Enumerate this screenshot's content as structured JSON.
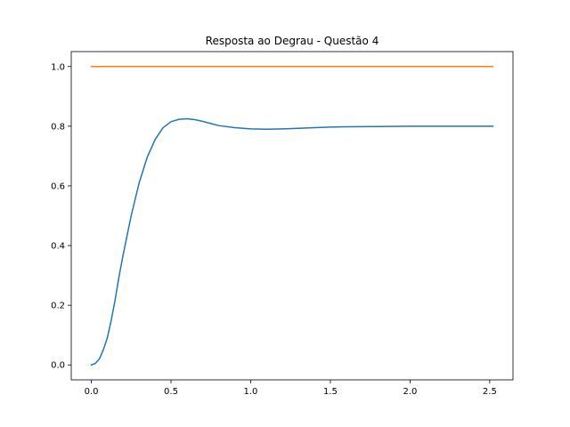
{
  "chart_data": {
    "type": "line",
    "title": "Resposta ao Degrau - Questão 4",
    "xlabel": "",
    "ylabel": "",
    "xlim": [
      -0.126,
      2.646
    ],
    "ylim": [
      -0.05,
      1.05
    ],
    "grid": false,
    "x_ticks": [
      0.0,
      0.5,
      1.0,
      1.5,
      2.0,
      2.5
    ],
    "x_tick_labels": [
      "0.0",
      "0.5",
      "1.0",
      "1.5",
      "2.0",
      "2.5"
    ],
    "y_ticks": [
      0.0,
      0.2,
      0.4,
      0.6,
      0.8,
      1.0
    ],
    "y_tick_labels": [
      "0.0",
      "0.2",
      "0.4",
      "0.6",
      "0.8",
      "1.0"
    ],
    "series": [
      {
        "color": "#1f77b4",
        "x": [
          0.0,
          0.025,
          0.05,
          0.075,
          0.1,
          0.125,
          0.15,
          0.175,
          0.2,
          0.25,
          0.3,
          0.35,
          0.4,
          0.45,
          0.5,
          0.55,
          0.6,
          0.65,
          0.7,
          0.75,
          0.8,
          0.9,
          1.0,
          1.1,
          1.2,
          1.3,
          1.4,
          1.5,
          1.6,
          1.8,
          2.0,
          2.2,
          2.4,
          2.52
        ],
        "y": [
          0.0,
          0.005,
          0.02,
          0.05,
          0.09,
          0.15,
          0.22,
          0.3,
          0.37,
          0.5,
          0.61,
          0.695,
          0.755,
          0.795,
          0.815,
          0.823,
          0.825,
          0.822,
          0.816,
          0.809,
          0.802,
          0.795,
          0.791,
          0.79,
          0.791,
          0.793,
          0.795,
          0.797,
          0.798,
          0.799,
          0.8,
          0.8,
          0.8,
          0.8
        ]
      },
      {
        "color": "#ff7f0e",
        "x": [
          0.0,
          2.52
        ],
        "y": [
          1.0,
          1.0
        ]
      }
    ]
  }
}
